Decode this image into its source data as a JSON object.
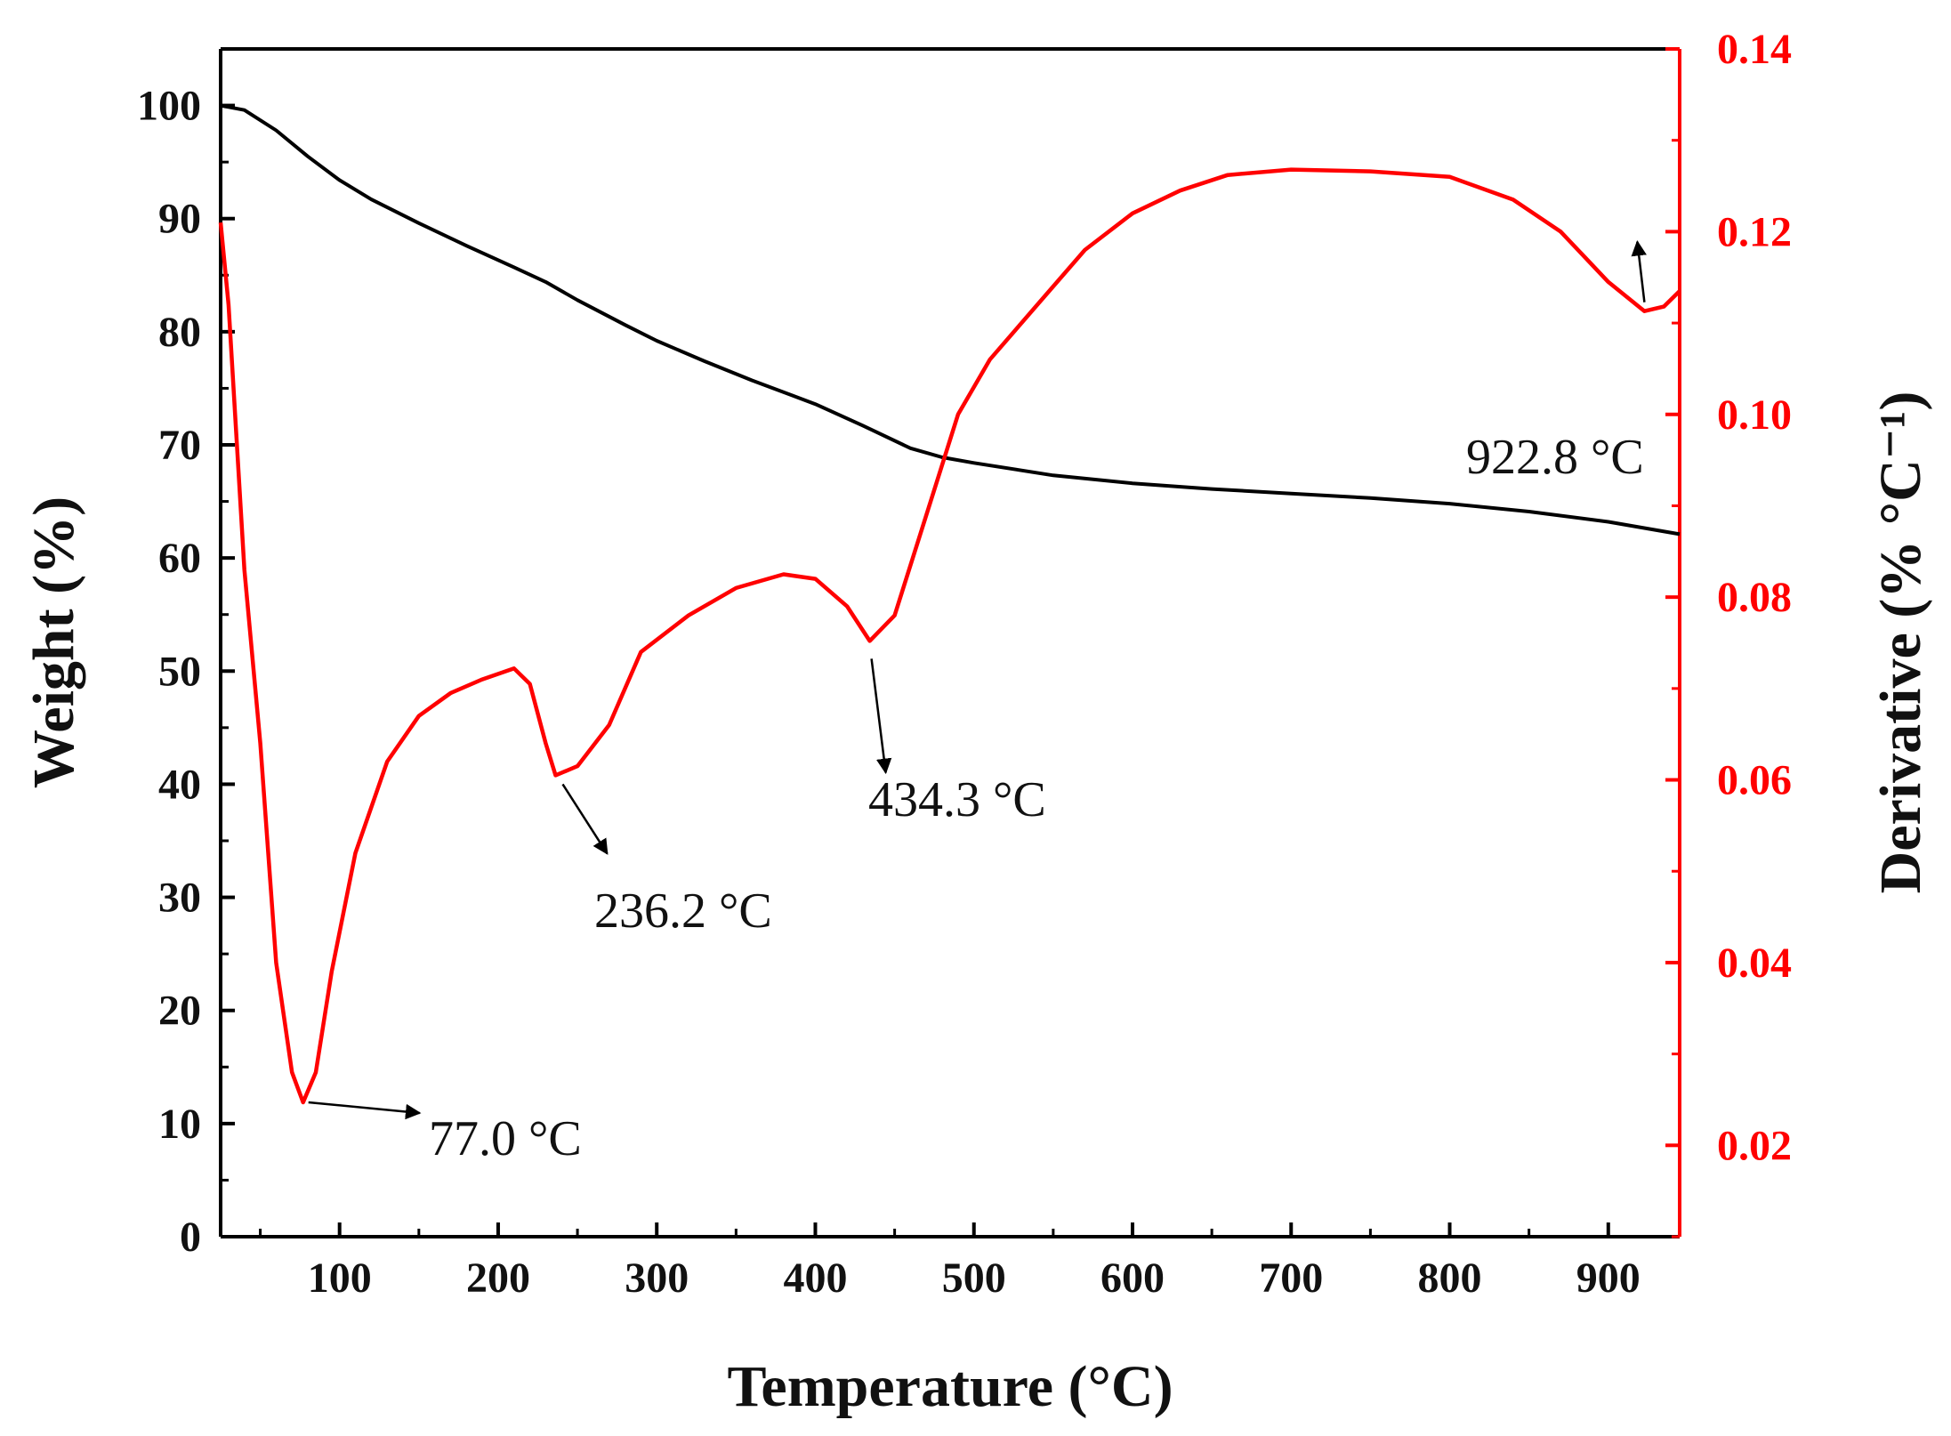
{
  "chart_data": {
    "type": "line",
    "xlabel": "Temperature (°C)",
    "ylabel_left": "Weight (%)",
    "ylabel_right": "Derivative (% °C⁻¹)",
    "xlim": [
      25,
      945
    ],
    "ylim_left": [
      0,
      105
    ],
    "ylim_right": [
      0.01,
      0.14
    ],
    "x_ticks": [
      100,
      200,
      300,
      400,
      500,
      600,
      700,
      800,
      900
    ],
    "x_tick_labels": [
      "100",
      "200",
      "300",
      "400",
      "500",
      "600",
      "700",
      "800",
      "900"
    ],
    "y_left_ticks": [
      0,
      10,
      20,
      30,
      40,
      50,
      60,
      70,
      80,
      90,
      100
    ],
    "y_left_tick_labels": [
      "0",
      "10",
      "20",
      "30",
      "40",
      "50",
      "60",
      "70",
      "80",
      "90",
      "100"
    ],
    "y_right_ticks": [
      0.02,
      0.04,
      0.06,
      0.08,
      0.1,
      0.12,
      0.14
    ],
    "y_right_tick_labels": [
      "0.02",
      "0.04",
      "0.06",
      "0.08",
      "0.10",
      "0.12",
      "0.14"
    ],
    "colors": {
      "weight": "#000000",
      "derivative": "#ff0000"
    },
    "series": [
      {
        "name": "Weight",
        "axis": "left",
        "x": [
          25,
          40,
          60,
          80,
          100,
          120,
          150,
          180,
          210,
          230,
          250,
          280,
          300,
          330,
          360,
          400,
          430,
          460,
          480,
          500,
          550,
          600,
          650,
          700,
          750,
          800,
          850,
          900,
          945
        ],
        "y": [
          100,
          99.6,
          97.8,
          95.5,
          93.4,
          91.7,
          89.6,
          87.6,
          85.7,
          84.4,
          82.8,
          80.6,
          79.2,
          77.4,
          75.7,
          73.6,
          71.7,
          69.7,
          68.9,
          68.4,
          67.3,
          66.6,
          66.1,
          65.7,
          65.3,
          64.8,
          64.1,
          63.2,
          62.1
        ]
      },
      {
        "name": "Derivative",
        "axis": "right",
        "x": [
          25,
          30,
          40,
          50,
          60,
          70,
          77,
          85,
          95,
          110,
          130,
          150,
          170,
          190,
          210,
          220,
          230,
          236.2,
          250,
          270,
          290,
          320,
          350,
          380,
          400,
          420,
          434.3,
          450,
          470,
          490,
          510,
          540,
          570,
          600,
          630,
          660,
          700,
          750,
          800,
          840,
          870,
          900,
          922.8,
          935,
          945
        ],
        "y": [
          0.121,
          0.112,
          0.083,
          0.064,
          0.04,
          0.028,
          0.0247,
          0.028,
          0.039,
          0.052,
          0.062,
          0.067,
          0.0695,
          0.071,
          0.0722,
          0.0705,
          0.064,
          0.0605,
          0.0615,
          0.066,
          0.074,
          0.078,
          0.081,
          0.0825,
          0.082,
          0.079,
          0.0752,
          0.078,
          0.089,
          0.1,
          0.106,
          0.112,
          0.118,
          0.122,
          0.1245,
          0.1262,
          0.1268,
          0.1266,
          0.126,
          0.1235,
          0.12,
          0.1145,
          0.1113,
          0.1118,
          0.1135
        ]
      }
    ],
    "annotations": [
      {
        "text": "77.0 °C",
        "x": 77.0
      },
      {
        "text": "236.2 °C",
        "x": 236.2
      },
      {
        "text": "434.3 °C",
        "x": 434.3
      },
      {
        "text": "922.8 °C",
        "x": 922.8
      }
    ]
  }
}
